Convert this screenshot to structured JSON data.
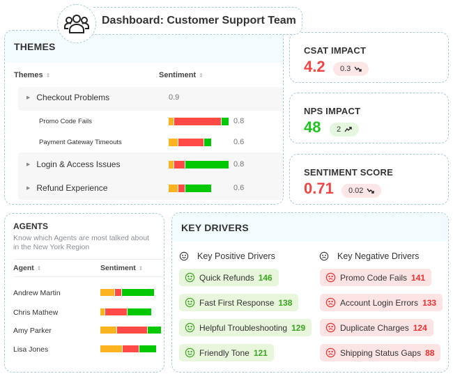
{
  "header": {
    "title": "Dashboard: Customer Support Team",
    "icon": "team-icon"
  },
  "themes": {
    "title": "THEMES",
    "columns": [
      "Themes",
      "Sentiment"
    ],
    "rows": [
      {
        "label": "Checkout Problems",
        "level": 0,
        "value": "0.9",
        "segments": null
      },
      {
        "label": "Promo Code Fails",
        "level": 1,
        "value": "0.8",
        "segments": [
          7,
          67,
          10
        ]
      },
      {
        "label": "Payment Gateway Timeouts",
        "level": 1,
        "value": "0.6",
        "segments": [
          13,
          36,
          10
        ]
      },
      {
        "label": "Login & Access Issues",
        "level": 0,
        "value": "0.8",
        "segments": [
          7,
          15,
          62
        ]
      },
      {
        "label": "Refund Experience",
        "level": 0,
        "value": "0.6",
        "segments": [
          13,
          9,
          37
        ]
      }
    ]
  },
  "metrics": [
    {
      "title": "CSAT IMPACT",
      "value": "4.2",
      "change": "0.3",
      "trend": "down",
      "color": "#f04545"
    },
    {
      "title": "NPS IMPACT",
      "value": "48",
      "change": "2",
      "trend": "up",
      "color": "#1fc21f"
    },
    {
      "title": "SENTIMENT SCORE",
      "value": "0.71",
      "change": "0.02",
      "trend": "down",
      "color": "#f04545"
    }
  ],
  "agents": {
    "title": "AGENTS",
    "subtitle": "Know which Agents are most talked about in the New York Region",
    "columns": [
      "Agent",
      "Sentiment"
    ],
    "rows": [
      {
        "name": "Andrew Martin",
        "segments": [
          20,
          9,
          46
        ]
      },
      {
        "name": "Chris Mathew",
        "segments": [
          6,
          31,
          34
        ]
      },
      {
        "name": "Amy Parker",
        "segments": [
          23,
          43,
          19
        ]
      },
      {
        "name": "Lisa Jones",
        "segments": [
          31,
          23,
          24
        ]
      }
    ]
  },
  "key_drivers": {
    "title": "KEY DRIVERS",
    "positive_title": "Key Positive Drivers",
    "negative_title": "Key Negative Drivers",
    "positive": [
      {
        "label": "Quick Refunds",
        "count": "146"
      },
      {
        "label": "Fast First Response",
        "count": "138"
      },
      {
        "label": "Helpful Troubleshooting",
        "count": "129"
      },
      {
        "label": "Friendly Tone",
        "count": "121"
      }
    ],
    "negative": [
      {
        "label": "Promo Code Fails",
        "count": "141"
      },
      {
        "label": "Account Login Errors",
        "count": "133"
      },
      {
        "label": "Duplicate Charges",
        "count": "124"
      },
      {
        "label": "Shipping Status Gaps",
        "count": "88"
      }
    ]
  },
  "colors": {
    "neutral": "#fbb41f",
    "negative": "#ff4a45",
    "positive": "#03c803"
  }
}
